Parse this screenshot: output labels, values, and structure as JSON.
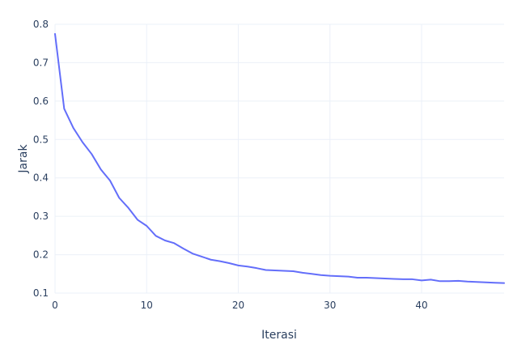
{
  "chart_data": {
    "type": "line",
    "title": "",
    "xlabel": "Iterasi",
    "ylabel": "Jarak",
    "xlim": [
      0,
      49
    ],
    "ylim": [
      0.1,
      0.8
    ],
    "x_ticks": [
      0,
      10,
      20,
      30,
      40
    ],
    "y_ticks": [
      0.1,
      0.2,
      0.3,
      0.4,
      0.5,
      0.6,
      0.7,
      0.8
    ],
    "grid": true,
    "line_color": "#636efa",
    "grid_color": "#ebf0f8",
    "text_color": "#2a3f5f",
    "series": [
      {
        "x": [
          0,
          1,
          2,
          3,
          4,
          5,
          6,
          7,
          8,
          9,
          10,
          11,
          12,
          13,
          14,
          15,
          16,
          17,
          18,
          19,
          20,
          21,
          22,
          23,
          24,
          25,
          26,
          27,
          28,
          29,
          30,
          31,
          32,
          33,
          34,
          35,
          36,
          37,
          38,
          39,
          40,
          41,
          42,
          43,
          44,
          45,
          46,
          47,
          48,
          49
        ],
        "values": [
          0.775,
          0.58,
          0.53,
          0.493,
          0.462,
          0.422,
          0.393,
          0.348,
          0.322,
          0.291,
          0.275,
          0.249,
          0.237,
          0.23,
          0.216,
          0.203,
          0.195,
          0.187,
          0.183,
          0.178,
          0.172,
          0.169,
          0.165,
          0.16,
          0.159,
          0.158,
          0.157,
          0.153,
          0.15,
          0.147,
          0.145,
          0.144,
          0.143,
          0.14,
          0.14,
          0.139,
          0.138,
          0.137,
          0.136,
          0.136,
          0.133,
          0.135,
          0.131,
          0.131,
          0.132,
          0.13,
          0.129,
          0.128,
          0.127,
          0.126
        ]
      }
    ]
  }
}
